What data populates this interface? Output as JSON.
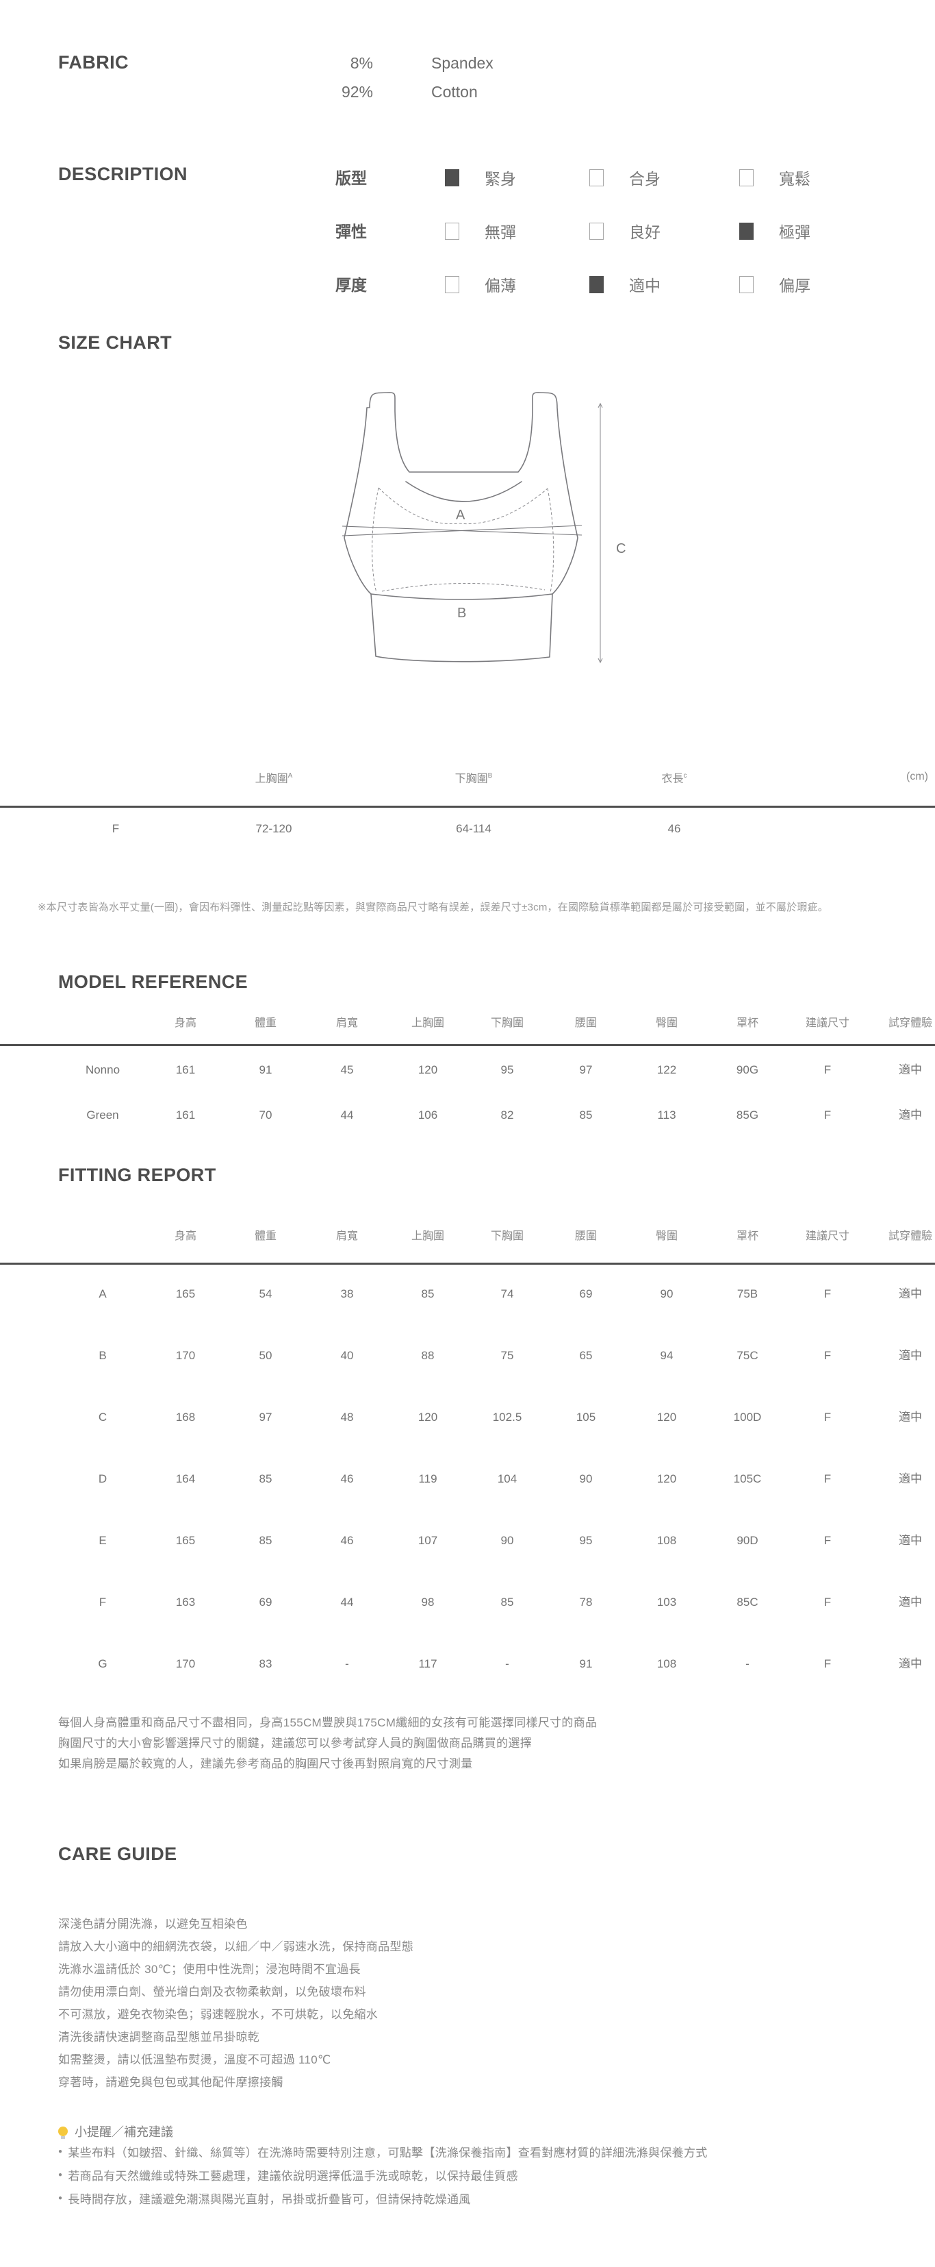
{
  "colors": {
    "heading": "#4d4d4d",
    "body_text": "#8a8a8a",
    "table_text": "#737373",
    "checkbox_filled": "#4f4f4f",
    "bulb_icon": "#f5c83d",
    "diagram_line": "#7a7a7e"
  },
  "fabric": {
    "heading": "FABRIC",
    "rows": [
      {
        "percent": "8%",
        "material": "Spandex"
      },
      {
        "percent": "92%",
        "material": "Cotton"
      }
    ]
  },
  "description": {
    "heading": "DESCRIPTION",
    "rows": [
      {
        "label": "版型",
        "options": [
          {
            "label": "緊身",
            "checked": true
          },
          {
            "label": "合身",
            "checked": false
          },
          {
            "label": "寬鬆",
            "checked": false
          }
        ]
      },
      {
        "label": "彈性",
        "options": [
          {
            "label": "無彈",
            "checked": false
          },
          {
            "label": "良好",
            "checked": false
          },
          {
            "label": "極彈",
            "checked": true
          }
        ]
      },
      {
        "label": "厚度",
        "options": [
          {
            "label": "偏薄",
            "checked": false
          },
          {
            "label": "適中",
            "checked": true
          },
          {
            "label": "偏厚",
            "checked": false
          }
        ]
      }
    ]
  },
  "size_chart": {
    "heading": "SIZE CHART",
    "diagram_labels": {
      "a": "A",
      "b": "B",
      "c": "C"
    },
    "columns": [
      {
        "label": "上胸圍",
        "sup": "A"
      },
      {
        "label": "下胸圍",
        "sup": "B"
      },
      {
        "label": "衣長",
        "sup": "c"
      }
    ],
    "unit": "(cm)",
    "rows": [
      {
        "size": "F",
        "values": [
          "72-120",
          "64-114",
          "46"
        ]
      }
    ],
    "note": "※本尺寸表皆為水平丈量(一圈)，會因布料彈性、測量起訖點等因素，與實際商品尺寸略有誤差，誤差尺寸±3cm，在國際驗貨標準範圍都是屬於可接受範圍，並不屬於瑕疵。"
  },
  "model_reference": {
    "heading": "MODEL REFERENCE",
    "columns": [
      "身高",
      "體重",
      "肩寬",
      "上胸圍",
      "下胸圍",
      "腰圍",
      "臀圍",
      "罩杯",
      "建議尺寸",
      "試穿體驗"
    ],
    "rows": [
      {
        "name": "Nonno",
        "values": [
          "161",
          "91",
          "45",
          "120",
          "95",
          "97",
          "122",
          "90G",
          "F",
          "適中"
        ]
      },
      {
        "name": "Green",
        "values": [
          "161",
          "70",
          "44",
          "106",
          "82",
          "85",
          "113",
          "85G",
          "F",
          "適中"
        ]
      }
    ]
  },
  "fitting_report": {
    "heading": "FITTING REPORT",
    "columns": [
      "身高",
      "體重",
      "肩寬",
      "上胸圍",
      "下胸圍",
      "腰圍",
      "臀圍",
      "罩杯",
      "建議尺寸",
      "試穿體驗"
    ],
    "rows": [
      {
        "name": "A",
        "values": [
          "165",
          "54",
          "38",
          "85",
          "74",
          "69",
          "90",
          "75B",
          "F",
          "適中"
        ]
      },
      {
        "name": "B",
        "values": [
          "170",
          "50",
          "40",
          "88",
          "75",
          "65",
          "94",
          "75C",
          "F",
          "適中"
        ]
      },
      {
        "name": "C",
        "values": [
          "168",
          "97",
          "48",
          "120",
          "102.5",
          "105",
          "120",
          "100D",
          "F",
          "適中"
        ]
      },
      {
        "name": "D",
        "values": [
          "164",
          "85",
          "46",
          "119",
          "104",
          "90",
          "120",
          "105C",
          "F",
          "適中"
        ]
      },
      {
        "name": "E",
        "values": [
          "165",
          "85",
          "46",
          "107",
          "90",
          "95",
          "108",
          "90D",
          "F",
          "適中"
        ]
      },
      {
        "name": "F",
        "values": [
          "163",
          "69",
          "44",
          "98",
          "85",
          "78",
          "103",
          "85C",
          "F",
          "適中"
        ]
      },
      {
        "name": "G",
        "values": [
          "170",
          "83",
          "-",
          "117",
          "-",
          "91",
          "108",
          "-",
          "F",
          "適中"
        ]
      }
    ],
    "notes": [
      "每個人身高體重和商品尺寸不盡相同，身高155CM豐腴與175CM纖細的女孩有可能選擇同樣尺寸的商品",
      "胸圍尺寸的大小會影響選擇尺寸的關鍵，建議您可以參考試穿人員的胸圍做商品購買的選擇",
      "如果肩膀是屬於較寬的人，建議先參考商品的胸圍尺寸後再對照肩寬的尺寸測量"
    ]
  },
  "care_guide": {
    "heading": "CARE GUIDE",
    "lines": [
      "深淺色請分開洗滌，以避免互相染色",
      "請放入大小適中的細網洗衣袋，以細／中／弱速水洗，保持商品型態",
      "洗滌水溫請低於 30℃；使用中性洗劑；浸泡時間不宜過長",
      "請勿使用漂白劑、螢光增白劑及衣物柔軟劑，以免破壞布料",
      "不可濕放，避免衣物染色；弱速輕脫水，不可烘乾，以免縮水",
      "清洗後請快速調整商品型態並吊掛晾乾",
      "如需整燙，請以低溫墊布熨燙，溫度不可超過 110℃",
      "穿著時，請避免與包包或其他配件摩擦接觸"
    ]
  },
  "reminder": {
    "icon": "lightbulb",
    "title": "小提醒／補充建議",
    "bullets": [
      "某些布料（如皺摺、針織、絲質等）在洗滌時需要特別注意，可點擊【洗滌保養指南】查看對應材質的詳細洗滌與保養方式",
      "若商品有天然纖維或特殊工藝處理，建議依說明選擇低溫手洗或晾乾，以保持最佳質感",
      "長時間存放，建議避免潮濕與陽光直射，吊掛或折疊皆可，但請保持乾燥通風"
    ]
  }
}
